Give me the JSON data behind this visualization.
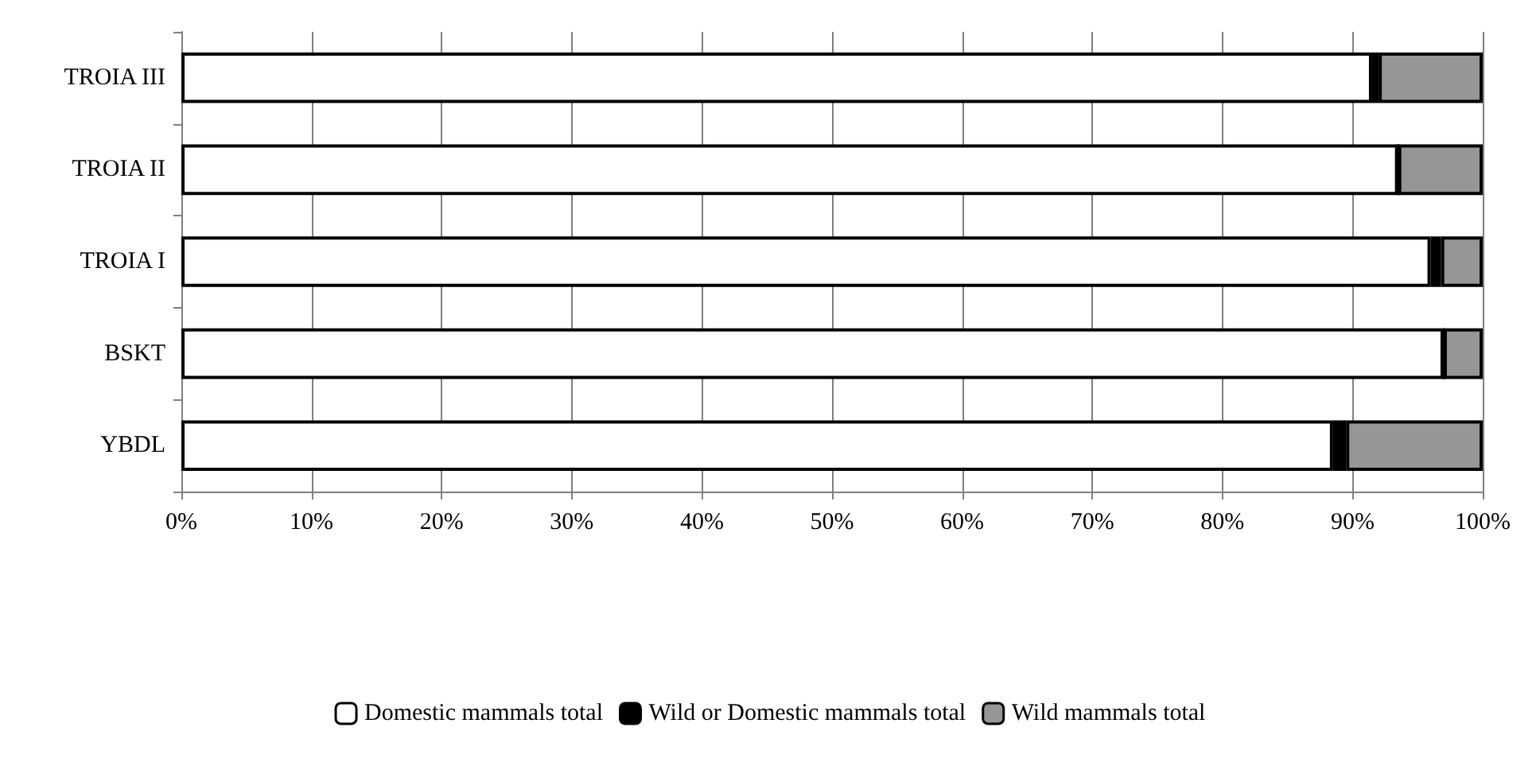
{
  "chart_data": {
    "type": "bar",
    "orientation": "horizontal",
    "stacked": true,
    "categories": [
      "TROIA III",
      "TROIA II",
      "TROIA I",
      "BSKT",
      "YBDL"
    ],
    "series": [
      {
        "name": "Domestic mammals total",
        "color": "#ffffff",
        "values": [
          91.5,
          93.5,
          96.0,
          97.0,
          88.5
        ]
      },
      {
        "name": "Wild or Domestic mammals total",
        "color": "#000000",
        "values": [
          0.5,
          0,
          0.8,
          0,
          1.0
        ]
      },
      {
        "name": "Wild mammals total",
        "color": "#969696",
        "values": [
          8.0,
          6.5,
          3.2,
          3.0,
          10.5
        ]
      }
    ],
    "xlim": [
      0,
      100
    ],
    "xticks": [
      {
        "value": 0,
        "label": "0%"
      },
      {
        "value": 10,
        "label": "10%"
      },
      {
        "value": 20,
        "label": "20%"
      },
      {
        "value": 30,
        "label": "30%"
      },
      {
        "value": 40,
        "label": "40%"
      },
      {
        "value": 50,
        "label": "50%"
      },
      {
        "value": 60,
        "label": "60%"
      },
      {
        "value": 70,
        "label": "70%"
      },
      {
        "value": 80,
        "label": "80%"
      },
      {
        "value": 90,
        "label": "90%"
      },
      {
        "value": 100,
        "label": "100%"
      }
    ],
    "grid": "x",
    "legend": "bottom"
  }
}
